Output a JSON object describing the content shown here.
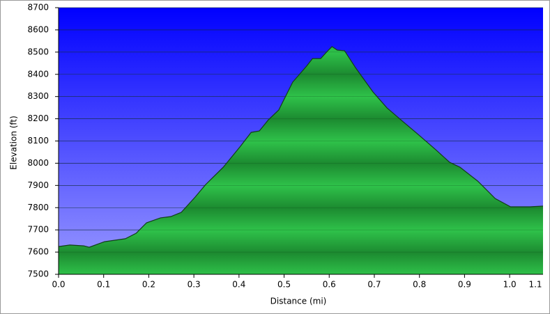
{
  "chart_data": {
    "type": "area",
    "x_label": "Distance   (mi)",
    "y_label": "Elevation (ft)",
    "x": [
      0,
      0.025,
      0.056,
      0.068,
      0.102,
      0.148,
      0.172,
      0.195,
      0.226,
      0.249,
      0.272,
      0.303,
      0.326,
      0.365,
      0.403,
      0.427,
      0.445,
      0.465,
      0.488,
      0.519,
      0.55,
      0.563,
      0.581,
      0.597,
      0.606,
      0.618,
      0.634,
      0.658,
      0.697,
      0.728,
      0.759,
      0.797,
      0.836,
      0.867,
      0.89,
      0.929,
      0.968,
      1.002,
      1.045,
      1.074
    ],
    "values": [
      7625,
      7632,
      7628,
      7622,
      7647,
      7660,
      7685,
      7732,
      7754,
      7760,
      7779,
      7848,
      7904,
      7982,
      8076,
      8139,
      8145,
      8195,
      8239,
      8365,
      8437,
      8471,
      8471,
      8506,
      8525,
      8509,
      8506,
      8431,
      8321,
      8249,
      8195,
      8130,
      8061,
      8004,
      7982,
      7920,
      7841,
      7804,
      7804,
      7807
    ],
    "color": "#1fa33a",
    "xlim": [
      0,
      1.074
    ],
    "ylim": [
      7500,
      8700
    ],
    "xticks": [
      {
        "value": 0,
        "label": "0.0"
      },
      0.1,
      0.2,
      0.3,
      0.4,
      0.5,
      0.6,
      0.7,
      0.8,
      0.9,
      {
        "value": 1,
        "label": "1.0"
      },
      1.1
    ],
    "yticks": [
      7500,
      7600,
      7700,
      7800,
      7900,
      8000,
      8100,
      8200,
      8300,
      8400,
      8500,
      8600,
      8700
    ],
    "grid": true
  }
}
